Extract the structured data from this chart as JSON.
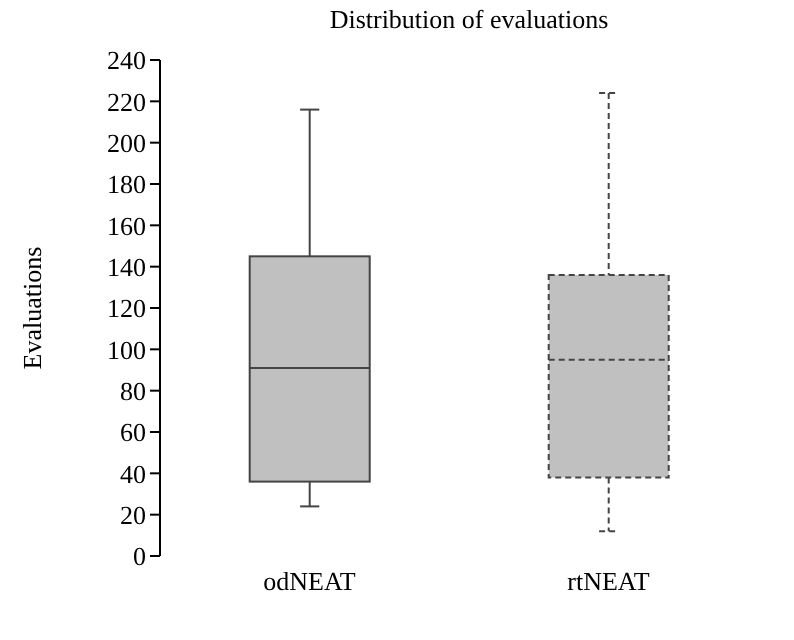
{
  "chart_data": {
    "type": "box",
    "title": "Distribution of evaluations",
    "ylabel": "Evaluations",
    "categories": [
      "odNEAT",
      "rtNEAT"
    ],
    "series": [
      {
        "color": "#c0c0c0",
        "line_style": "solid",
        "boxes": [
          {
            "low": 24,
            "q1": 36,
            "median": 91,
            "q3": 145,
            "high": 216
          },
          null
        ]
      },
      {
        "color": "#c0c0c0",
        "line_style": "dashed",
        "boxes": [
          null,
          {
            "low": 12,
            "q1": 38,
            "median": 95,
            "q3": 136,
            "high": 224
          }
        ]
      }
    ],
    "ylim": [
      0,
      240
    ],
    "yticks": [
      0,
      20,
      40,
      60,
      80,
      100,
      120,
      140,
      160,
      180,
      200,
      220,
      240
    ],
    "grid": false,
    "legend": false
  }
}
